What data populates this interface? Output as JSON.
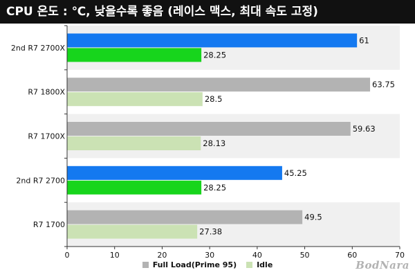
{
  "title": "CPU 온도 : ℃, 낮을수록 좋음 (레이스 맥스, 최대 속도 고정)",
  "watermark": "BodNara",
  "colors": {
    "full_load": "#b3b3b3",
    "idle": "#cbe2b4",
    "full_load_highlight": "#1479f0",
    "idle_highlight": "#17d51c",
    "band": "#f0f0f0"
  },
  "chart_data": {
    "type": "bar",
    "orientation": "horizontal",
    "categories": [
      "2nd R7 2700X",
      "R7 1800X",
      "R7 1700X",
      "2nd R7 2700",
      "R7 1700"
    ],
    "highlighted_categories": [
      "2nd R7 2700X",
      "2nd R7 2700"
    ],
    "series": [
      {
        "name": "Full Load(Prime 95)",
        "values": [
          61,
          63.75,
          59.63,
          45.25,
          49.5
        ]
      },
      {
        "name": "Idle",
        "values": [
          28.25,
          28.5,
          28.13,
          28.25,
          27.38
        ]
      }
    ],
    "data_labels": [
      [
        "61",
        "63.75",
        "59.63",
        "45.25",
        "49.5"
      ],
      [
        "28.25",
        "28.5",
        "28.13",
        "28.25",
        "27.38"
      ]
    ],
    "xlim": [
      0,
      70
    ],
    "xticks": [
      "0",
      "10",
      "20",
      "30",
      "40",
      "50",
      "60",
      "70"
    ],
    "legend_position": "bottom",
    "grid": false
  }
}
